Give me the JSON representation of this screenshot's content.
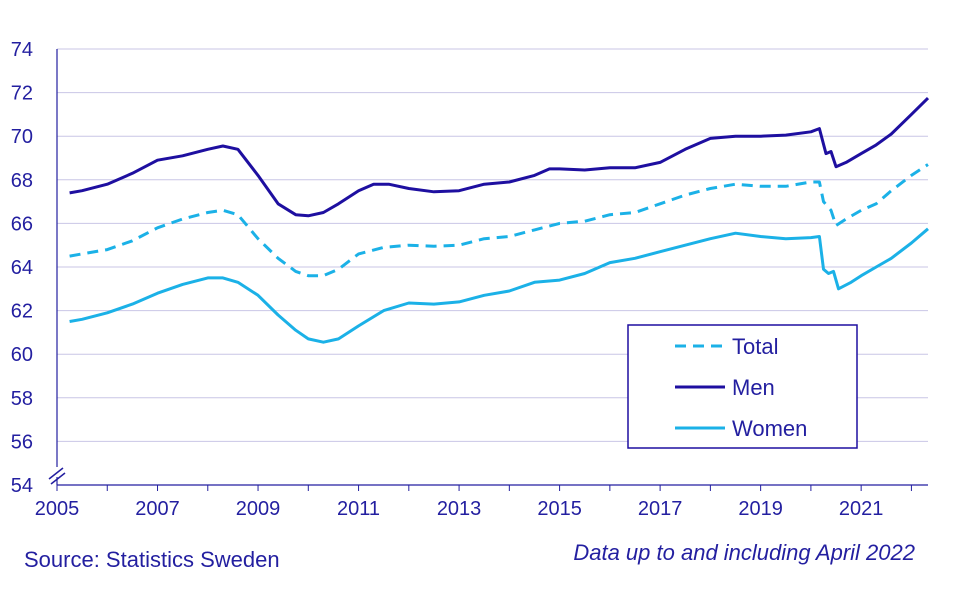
{
  "chart_data": {
    "type": "line",
    "title": "",
    "xlabel": "",
    "ylabel": "",
    "xlim": [
      2005,
      2022.33
    ],
    "ylim": [
      54,
      74
    ],
    "y_ticks": [
      54,
      56,
      58,
      60,
      62,
      64,
      66,
      68,
      70,
      72,
      74
    ],
    "x_ticks": [
      2005,
      2007,
      2009,
      2011,
      2013,
      2015,
      2017,
      2019,
      2021
    ],
    "y_axis_break": true,
    "grid": "horizontal",
    "legend_position": "lower-right",
    "series": [
      {
        "name": "Total",
        "color": "#1bb1e7",
        "style": "dashed",
        "points": [
          [
            2005.25,
            64.5
          ],
          [
            2005.5,
            64.6
          ],
          [
            2006.0,
            64.8
          ],
          [
            2006.5,
            65.2
          ],
          [
            2007.0,
            65.8
          ],
          [
            2007.5,
            66.2
          ],
          [
            2008.0,
            66.5
          ],
          [
            2008.3,
            66.6
          ],
          [
            2008.6,
            66.4
          ],
          [
            2009.0,
            65.3
          ],
          [
            2009.4,
            64.4
          ],
          [
            2009.75,
            63.8
          ],
          [
            2010.0,
            63.6
          ],
          [
            2010.3,
            63.6
          ],
          [
            2010.6,
            63.9
          ],
          [
            2011.0,
            64.6
          ],
          [
            2011.5,
            64.9
          ],
          [
            2012.0,
            65.0
          ],
          [
            2012.5,
            64.95
          ],
          [
            2013.0,
            65.0
          ],
          [
            2013.5,
            65.3
          ],
          [
            2014.0,
            65.4
          ],
          [
            2014.5,
            65.7
          ],
          [
            2015.0,
            66.0
          ],
          [
            2015.5,
            66.1
          ],
          [
            2016.0,
            66.4
          ],
          [
            2016.5,
            66.5
          ],
          [
            2017.0,
            66.9
          ],
          [
            2017.5,
            67.3
          ],
          [
            2018.0,
            67.6
          ],
          [
            2018.5,
            67.8
          ],
          [
            2019.0,
            67.7
          ],
          [
            2019.5,
            67.7
          ],
          [
            2020.0,
            67.9
          ],
          [
            2020.17,
            67.9
          ],
          [
            2020.25,
            67.0
          ],
          [
            2020.4,
            66.6
          ],
          [
            2020.5,
            65.9
          ],
          [
            2020.7,
            66.2
          ],
          [
            2021.0,
            66.6
          ],
          [
            2021.3,
            66.9
          ],
          [
            2021.6,
            67.5
          ],
          [
            2022.0,
            68.2
          ],
          [
            2022.33,
            68.7
          ]
        ]
      },
      {
        "name": "Men",
        "color": "#1e0fa0",
        "style": "solid",
        "points": [
          [
            2005.25,
            67.4
          ],
          [
            2005.5,
            67.5
          ],
          [
            2006.0,
            67.8
          ],
          [
            2006.5,
            68.3
          ],
          [
            2007.0,
            68.9
          ],
          [
            2007.5,
            69.1
          ],
          [
            2008.0,
            69.4
          ],
          [
            2008.3,
            69.55
          ],
          [
            2008.6,
            69.4
          ],
          [
            2009.0,
            68.2
          ],
          [
            2009.4,
            66.9
          ],
          [
            2009.75,
            66.4
          ],
          [
            2010.0,
            66.35
          ],
          [
            2010.3,
            66.5
          ],
          [
            2010.6,
            66.9
          ],
          [
            2011.0,
            67.5
          ],
          [
            2011.3,
            67.8
          ],
          [
            2011.6,
            67.8
          ],
          [
            2012.0,
            67.6
          ],
          [
            2012.5,
            67.45
          ],
          [
            2013.0,
            67.5
          ],
          [
            2013.5,
            67.8
          ],
          [
            2014.0,
            67.9
          ],
          [
            2014.5,
            68.2
          ],
          [
            2014.8,
            68.5
          ],
          [
            2015.0,
            68.5
          ],
          [
            2015.5,
            68.45
          ],
          [
            2016.0,
            68.55
          ],
          [
            2016.5,
            68.55
          ],
          [
            2017.0,
            68.8
          ],
          [
            2017.5,
            69.4
          ],
          [
            2018.0,
            69.9
          ],
          [
            2018.5,
            70.0
          ],
          [
            2019.0,
            70.0
          ],
          [
            2019.5,
            70.05
          ],
          [
            2020.0,
            70.2
          ],
          [
            2020.17,
            70.35
          ],
          [
            2020.3,
            69.2
          ],
          [
            2020.4,
            69.3
          ],
          [
            2020.5,
            68.6
          ],
          [
            2020.7,
            68.8
          ],
          [
            2021.0,
            69.2
          ],
          [
            2021.3,
            69.6
          ],
          [
            2021.6,
            70.1
          ],
          [
            2022.0,
            71.0
          ],
          [
            2022.33,
            71.75
          ]
        ]
      },
      {
        "name": "Women",
        "color": "#1bb1e7",
        "style": "solid",
        "points": [
          [
            2005.25,
            61.5
          ],
          [
            2005.5,
            61.6
          ],
          [
            2006.0,
            61.9
          ],
          [
            2006.5,
            62.3
          ],
          [
            2007.0,
            62.8
          ],
          [
            2007.5,
            63.2
          ],
          [
            2008.0,
            63.5
          ],
          [
            2008.3,
            63.5
          ],
          [
            2008.6,
            63.3
          ],
          [
            2009.0,
            62.7
          ],
          [
            2009.4,
            61.8
          ],
          [
            2009.75,
            61.1
          ],
          [
            2010.0,
            60.7
          ],
          [
            2010.3,
            60.55
          ],
          [
            2010.6,
            60.7
          ],
          [
            2011.0,
            61.3
          ],
          [
            2011.5,
            62.0
          ],
          [
            2012.0,
            62.35
          ],
          [
            2012.5,
            62.3
          ],
          [
            2013.0,
            62.4
          ],
          [
            2013.5,
            62.7
          ],
          [
            2014.0,
            62.9
          ],
          [
            2014.5,
            63.3
          ],
          [
            2015.0,
            63.4
          ],
          [
            2015.5,
            63.7
          ],
          [
            2016.0,
            64.2
          ],
          [
            2016.5,
            64.4
          ],
          [
            2017.0,
            64.7
          ],
          [
            2017.5,
            65.0
          ],
          [
            2018.0,
            65.3
          ],
          [
            2018.5,
            65.55
          ],
          [
            2019.0,
            65.4
          ],
          [
            2019.5,
            65.3
          ],
          [
            2020.0,
            65.35
          ],
          [
            2020.17,
            65.4
          ],
          [
            2020.25,
            63.9
          ],
          [
            2020.35,
            63.7
          ],
          [
            2020.45,
            63.8
          ],
          [
            2020.55,
            63.0
          ],
          [
            2020.8,
            63.3
          ],
          [
            2021.0,
            63.6
          ],
          [
            2021.3,
            64.0
          ],
          [
            2021.6,
            64.4
          ],
          [
            2022.0,
            65.1
          ],
          [
            2022.33,
            65.75
          ]
        ]
      }
    ]
  },
  "footer": {
    "source": "Source: Statistics Sweden",
    "note": "Data up to and including April 2022"
  }
}
